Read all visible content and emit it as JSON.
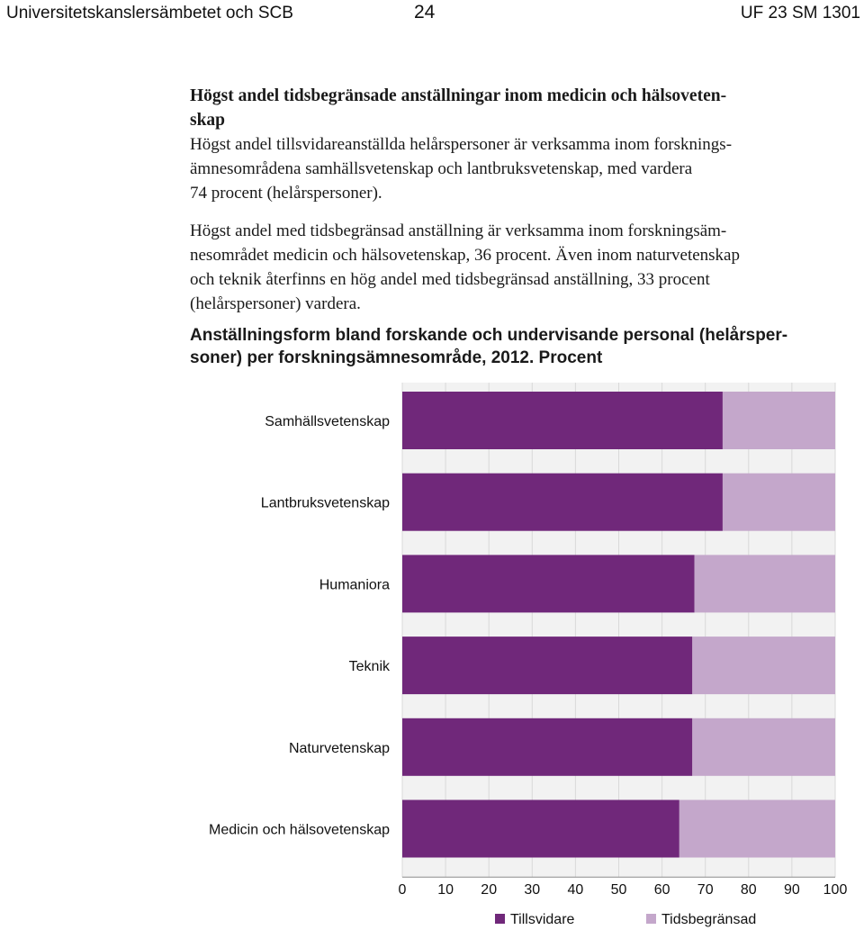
{
  "header": {
    "left": "Universitetskanslersämbetet och SCB",
    "page_number": "24",
    "right": "UF 23 SM 1301"
  },
  "article": {
    "heading_line1": "Högst andel tidsbegränsade anställningar inom medicin och hälsoveten-",
    "heading_line2": "skap",
    "p1_lines": [
      "Högst andel tillsvidareanställda helårspersoner är verksamma inom forsknings-",
      "ämnesområdena samhällsvetenskap och lantbruksvetenskap, med vardera",
      "74 procent (helårspersoner)."
    ],
    "p2_lines": [
      "Högst andel med tidsbegränsad anställning är verksamma inom forskningsäm-",
      "nesområdet medicin och hälsovetenskap, 36 procent. Även inom naturvetenskap",
      "och teknik återfinns en hög andel med tidsbegränsad anställning, 33 procent",
      "(helårspersoner) vardera."
    ]
  },
  "chart_title_lines": [
    "Anställningsform bland forskande och undervisande personal (helårsper-",
    "soner) per forskningsämnesområde, 2012. Procent"
  ],
  "colors": {
    "tillsvidare": "#70287a",
    "tidsbegransad": "#c4a7cb",
    "stripe": "#f2f2f2",
    "grid": "#d9d9d9"
  },
  "chart_data": {
    "type": "bar",
    "orientation": "horizontal",
    "stacked": true,
    "categories": [
      "Samhällsvetenskap",
      "Lantbruksvetenskap",
      "Humaniora",
      "Teknik",
      "Naturvetenskap",
      "Medicin och hälsovetenskap"
    ],
    "series": [
      {
        "name": "Tillsvidare",
        "values": [
          74,
          74,
          67.5,
          67,
          67,
          64
        ]
      },
      {
        "name": "Tidsbegränsad",
        "values": [
          26,
          26,
          32.5,
          33,
          33,
          36
        ]
      }
    ],
    "xlim": [
      0,
      100
    ],
    "xticks": [
      "0",
      "10",
      "20",
      "30",
      "40",
      "50",
      "60",
      "70",
      "80",
      "90",
      "100"
    ],
    "grid": true,
    "legend": "bottom"
  }
}
